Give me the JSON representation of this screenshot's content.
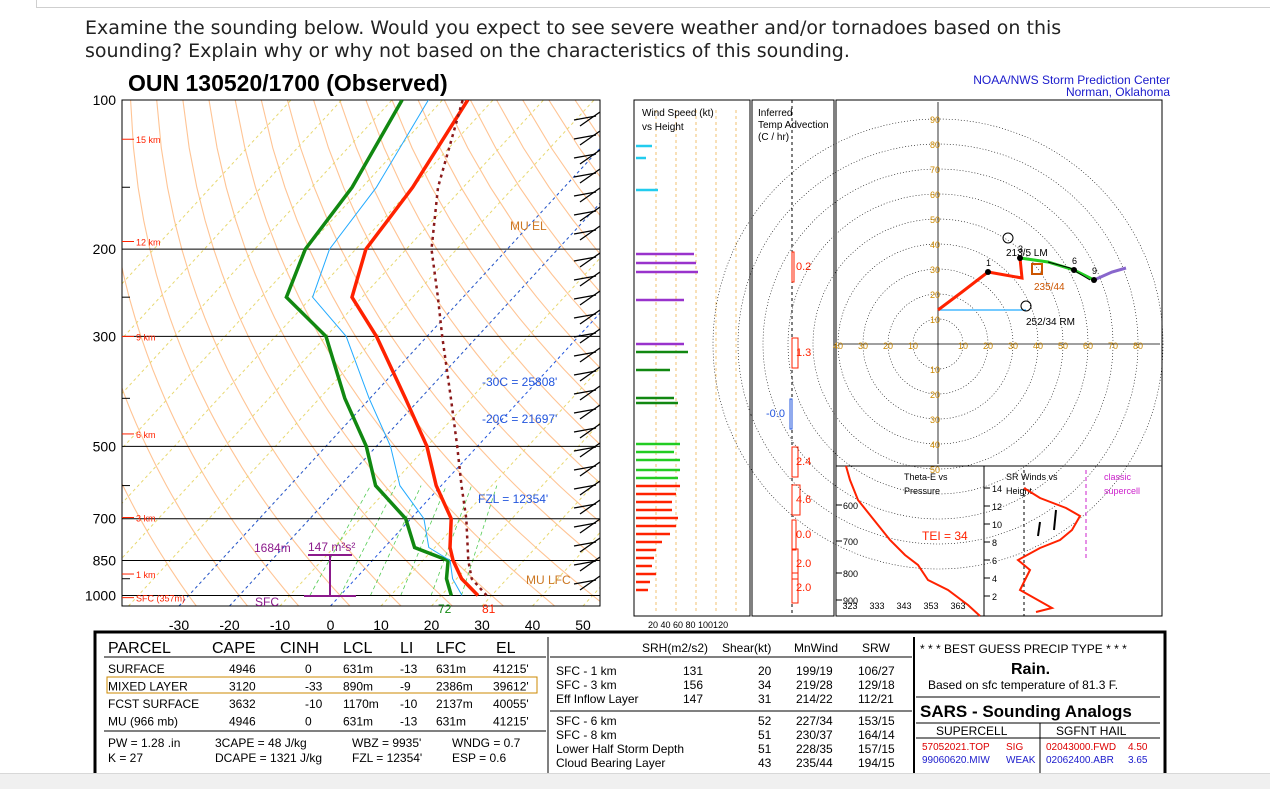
{
  "question": "Examine the sounding below. Would you expect to see severe weather and/or tornadoes based on this sounding? Explain why or why not based on the characteristics of this sounding.",
  "sounding_title": "OUN  130520/1700 (Observed)",
  "spc_credit": {
    "line1": "NOAA/NWS Storm Prediction Center",
    "line2": "Norman, Oklahoma"
  },
  "colors": {
    "temperature": "#ff2200",
    "dewpoint": "#118811",
    "parcel": "#8b1a1a",
    "wetbulb": "#22aaff",
    "isobars": "#000000",
    "adiabats": "#ffb070",
    "isotherms_zero": "#2255dd",
    "spc_blue": "#1a1acc",
    "panel_border": "#000000"
  },
  "skewt": {
    "pressure_labels": [
      "100",
      "200",
      "300",
      "500",
      "700",
      "850",
      "1000"
    ],
    "height_labels": [
      "15 km",
      "12 km",
      "9 km",
      "6 km",
      "3 km",
      "1 km",
      "SFC (357m)"
    ],
    "temp_labels": [
      "-30",
      "-20",
      "-10",
      "0",
      "10",
      "20",
      "30",
      "40",
      "50"
    ],
    "annotations": {
      "mu_el": "MU EL",
      "m30c": "-30C = 25808'",
      "m20c": "-20C = 21697'",
      "fzl": "FZL = 12354'",
      "lfc_depth": "1684m",
      "srh": "147 m²s²",
      "sfc": "SFC",
      "td_sfc": "72",
      "t_sfc": "81",
      "mu_lfc": "MU LFC"
    }
  },
  "wind_panel": {
    "title_line1": "Wind Speed (kt)",
    "title_line2": "vs Height",
    "axis": "20 40 60 80 100120"
  },
  "advection_panel": {
    "title_line1": "Inferred",
    "title_line2": "Temp Advection",
    "title_line3": "(C / hr)",
    "values": [
      "0.2",
      "1.3",
      "-0.0",
      "2.4",
      "4.6",
      "0.0",
      "2.0",
      "2.0"
    ]
  },
  "hodograph": {
    "ring_labels": [
      "90",
      "80",
      "70",
      "60",
      "50",
      "40",
      "30",
      "20",
      "10"
    ],
    "axis_labels": [
      "40",
      "30",
      "20",
      "10",
      "10",
      "20",
      "30",
      "40",
      "50",
      "60",
      "70",
      "80"
    ],
    "lm": "213/5 LM",
    "storm": "235/44",
    "rm": "252/34 RM",
    "heights": [
      "1",
      "3",
      "6",
      "9"
    ]
  },
  "theta_panel": {
    "title_line1": "Theta-E vs",
    "title_line2": "Pressure",
    "tei": "TEI = 34",
    "p_labels": [
      "600",
      "700",
      "800",
      "900"
    ],
    "x_labels": [
      "323",
      "333",
      "343",
      "353",
      "363"
    ]
  },
  "srw_panel": {
    "title_line1": "SR Winds vs",
    "title_line2": "Height",
    "h_labels": [
      "14",
      "12",
      "10",
      "8",
      "6",
      "4",
      "2"
    ],
    "tag_line1": "classic",
    "tag_line2": "supercell"
  },
  "parcel_table": {
    "headers": [
      "PARCEL",
      "CAPE",
      "CINH",
      "LCL",
      "LI",
      "LFC",
      "EL"
    ],
    "rows": [
      [
        "SURFACE",
        "4946",
        "0",
        "631m",
        "-13",
        "631m",
        "41215'"
      ],
      [
        "MIXED LAYER",
        "3120",
        "-33",
        "890m",
        "-9",
        "2386m",
        "39612'"
      ],
      [
        "FCST SURFACE",
        "3632",
        "-10",
        "1170m",
        "-10",
        "2137m",
        "40055'"
      ],
      [
        "MU  (966 mb)",
        "4946",
        "0",
        "631m",
        "-13",
        "631m",
        "41215'"
      ]
    ],
    "footer": [
      [
        "PW = 1.28 .in",
        "3CAPE = 48 J/kg",
        "WBZ = 9935'",
        "WNDG = 0.7"
      ],
      [
        "K = 27",
        "DCAPE = 1321 J/kg",
        "FZL = 12354'",
        "ESP = 0.6"
      ]
    ]
  },
  "kinematics_table": {
    "headers": [
      "SRH(m2/s2)",
      "Shear(kt)",
      "MnWind",
      "SRW"
    ],
    "rows": [
      [
        "SFC - 1 km",
        "131",
        "20",
        "199/19",
        "106/27"
      ],
      [
        "SFC - 3 km",
        "156",
        "34",
        "219/28",
        "129/18"
      ],
      [
        "Eff Inflow Layer",
        "147",
        "31",
        "214/22",
        "112/21"
      ],
      [
        "SFC - 6 km",
        "",
        "52",
        "227/34",
        "153/15"
      ],
      [
        "SFC - 8 km",
        "",
        "51",
        "230/37",
        "164/14"
      ],
      [
        "Lower Half Storm Depth",
        "",
        "51",
        "228/35",
        "157/15"
      ],
      [
        "Cloud Bearing Layer",
        "",
        "43",
        "235/44",
        "194/15"
      ]
    ]
  },
  "precip_box": {
    "header": "* * * BEST GUESS PRECIP TYPE * * *",
    "type": "Rain.",
    "note": "Based on sfc temperature of 81.3 F."
  },
  "sars": {
    "title": "SARS - Sounding Analogs",
    "col1": "SUPERCELL",
    "col2": "SGFNT HAIL",
    "left_rows": [
      [
        "57052021.TOP",
        "SIG"
      ],
      [
        "99060620.MIW",
        "WEAK"
      ]
    ],
    "right_rows": [
      [
        "02043000.FWD",
        "4.50"
      ],
      [
        "02062400.ABR",
        "3.65"
      ]
    ]
  },
  "chart_data": {
    "type": "line",
    "title": "OUN  130520/1700 (Observed)",
    "xlabel": "",
    "ylabel": "",
    "x_ticks": [
      -30,
      -20,
      -10,
      0,
      10,
      20,
      30,
      40,
      50
    ],
    "y_ticks": [
      100,
      200,
      300,
      500,
      700,
      850,
      1000
    ],
    "series": [
      {
        "name": "",
        "note_color": "temperature",
        "points": [
          [
            1000,
            27.3
          ],
          [
            925,
            21
          ],
          [
            850,
            16
          ],
          [
            800,
            13
          ],
          [
            700,
            8
          ],
          [
            600,
            -1
          ],
          [
            500,
            -10
          ],
          [
            400,
            -23
          ],
          [
            300,
            -40
          ],
          [
            250,
            -52
          ],
          [
            200,
            -58
          ],
          [
            150,
            -60
          ],
          [
            100,
            -65
          ]
        ]
      },
      {
        "name": "",
        "note_color": "dewpoint",
        "points": [
          [
            1000,
            22
          ],
          [
            925,
            18
          ],
          [
            850,
            15
          ],
          [
            800,
            6
          ],
          [
            700,
            -1
          ],
          [
            600,
            -13
          ],
          [
            500,
            -22
          ],
          [
            400,
            -35
          ],
          [
            300,
            -50
          ],
          [
            250,
            -65
          ],
          [
            200,
            -70
          ],
          [
            150,
            -72
          ],
          [
            100,
            -78
          ]
        ]
      }
    ]
  }
}
